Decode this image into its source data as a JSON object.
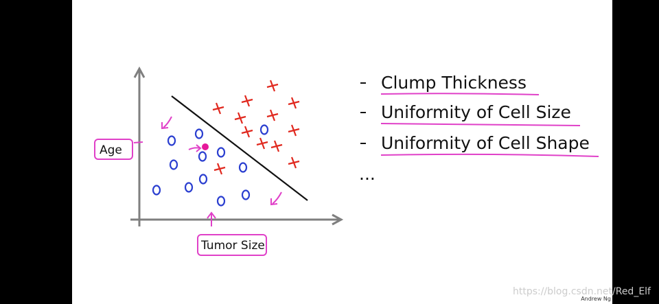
{
  "diagram": {
    "y_axis_label": "Age",
    "x_axis_label": "Tumor Size"
  },
  "features": [
    "Clump Thickness",
    "Uniformity of Cell Size",
    "Uniformity of Cell Shape",
    "..."
  ],
  "footer": {
    "author": "Andrew Ng",
    "watermark": "https://blog.csdn.net/Red_Elf"
  }
}
